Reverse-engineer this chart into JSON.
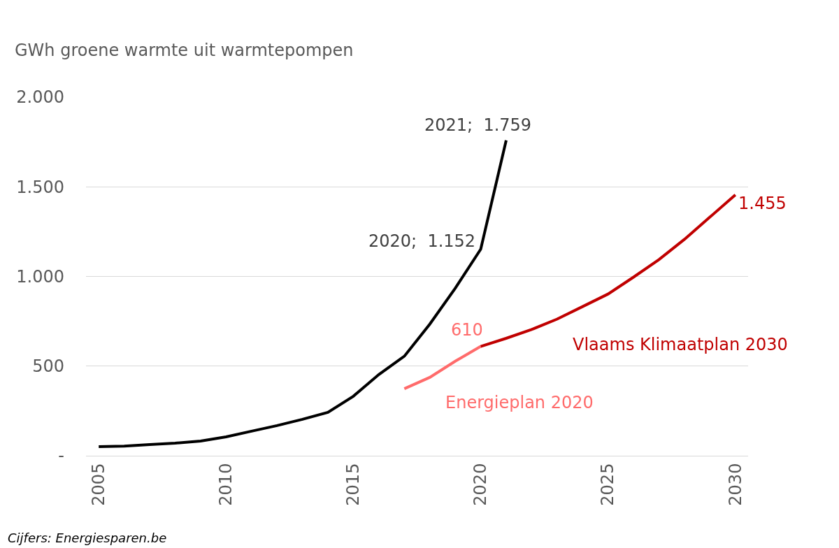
{
  "chart_data": {
    "type": "line",
    "ylabel": "GWh groene warmte uit warmtepompen",
    "annotations": [
      "Cijfers: Energiesparen.be"
    ],
    "xlim": [
      2004.5,
      2030.5
    ],
    "xticks": [
      2005,
      2010,
      2015,
      2020,
      2025,
      2030
    ],
    "ylim": [
      0,
      2000
    ],
    "yticks": [
      {
        "value": 0,
        "label": "-"
      },
      {
        "value": 500,
        "label": "500"
      },
      {
        "value": 1000,
        "label": "1.000"
      },
      {
        "value": 1500,
        "label": "1.500"
      },
      {
        "value": 2000,
        "label": "2.000"
      }
    ],
    "grid": "y",
    "legend": false,
    "marker": "none",
    "line_style": "solid",
    "series": [
      {
        "color": "#000000",
        "x": [
          2005,
          2006,
          2007,
          2008,
          2009,
          2010,
          2011,
          2012,
          2013,
          2014,
          2015,
          2016,
          2017,
          2018,
          2019,
          2020,
          2021
        ],
        "values": [
          51,
          54,
          62,
          70,
          82,
          105,
          137,
          168,
          203,
          242,
          332,
          453,
          555,
          734,
          934,
          1152,
          1759
        ],
        "value_labels": [
          null,
          null,
          null,
          null,
          null,
          null,
          null,
          null,
          null,
          null,
          null,
          null,
          null,
          null,
          null,
          "2020;  1.152",
          "2021;  1.759"
        ]
      },
      {
        "name": "Energieplan 2020",
        "color": "#ff6b6b",
        "x": [
          2017,
          2018,
          2019,
          2020
        ],
        "values": [
          374,
          437,
          527,
          610
        ],
        "value_labels": [
          null,
          null,
          null,
          "610"
        ]
      },
      {
        "name": "Vlaams Klimaatplan 2030",
        "color": "#c00000",
        "x": [
          2020,
          2021,
          2022,
          2023,
          2024,
          2025,
          2026,
          2027,
          2028,
          2029,
          2030
        ],
        "values": [
          610,
          655,
          704,
          762,
          832,
          902,
          996,
          1094,
          1207,
          1331,
          1455
        ],
        "value_labels": [
          null,
          null,
          null,
          null,
          null,
          null,
          null,
          null,
          null,
          null,
          "1.455"
        ]
      }
    ]
  }
}
